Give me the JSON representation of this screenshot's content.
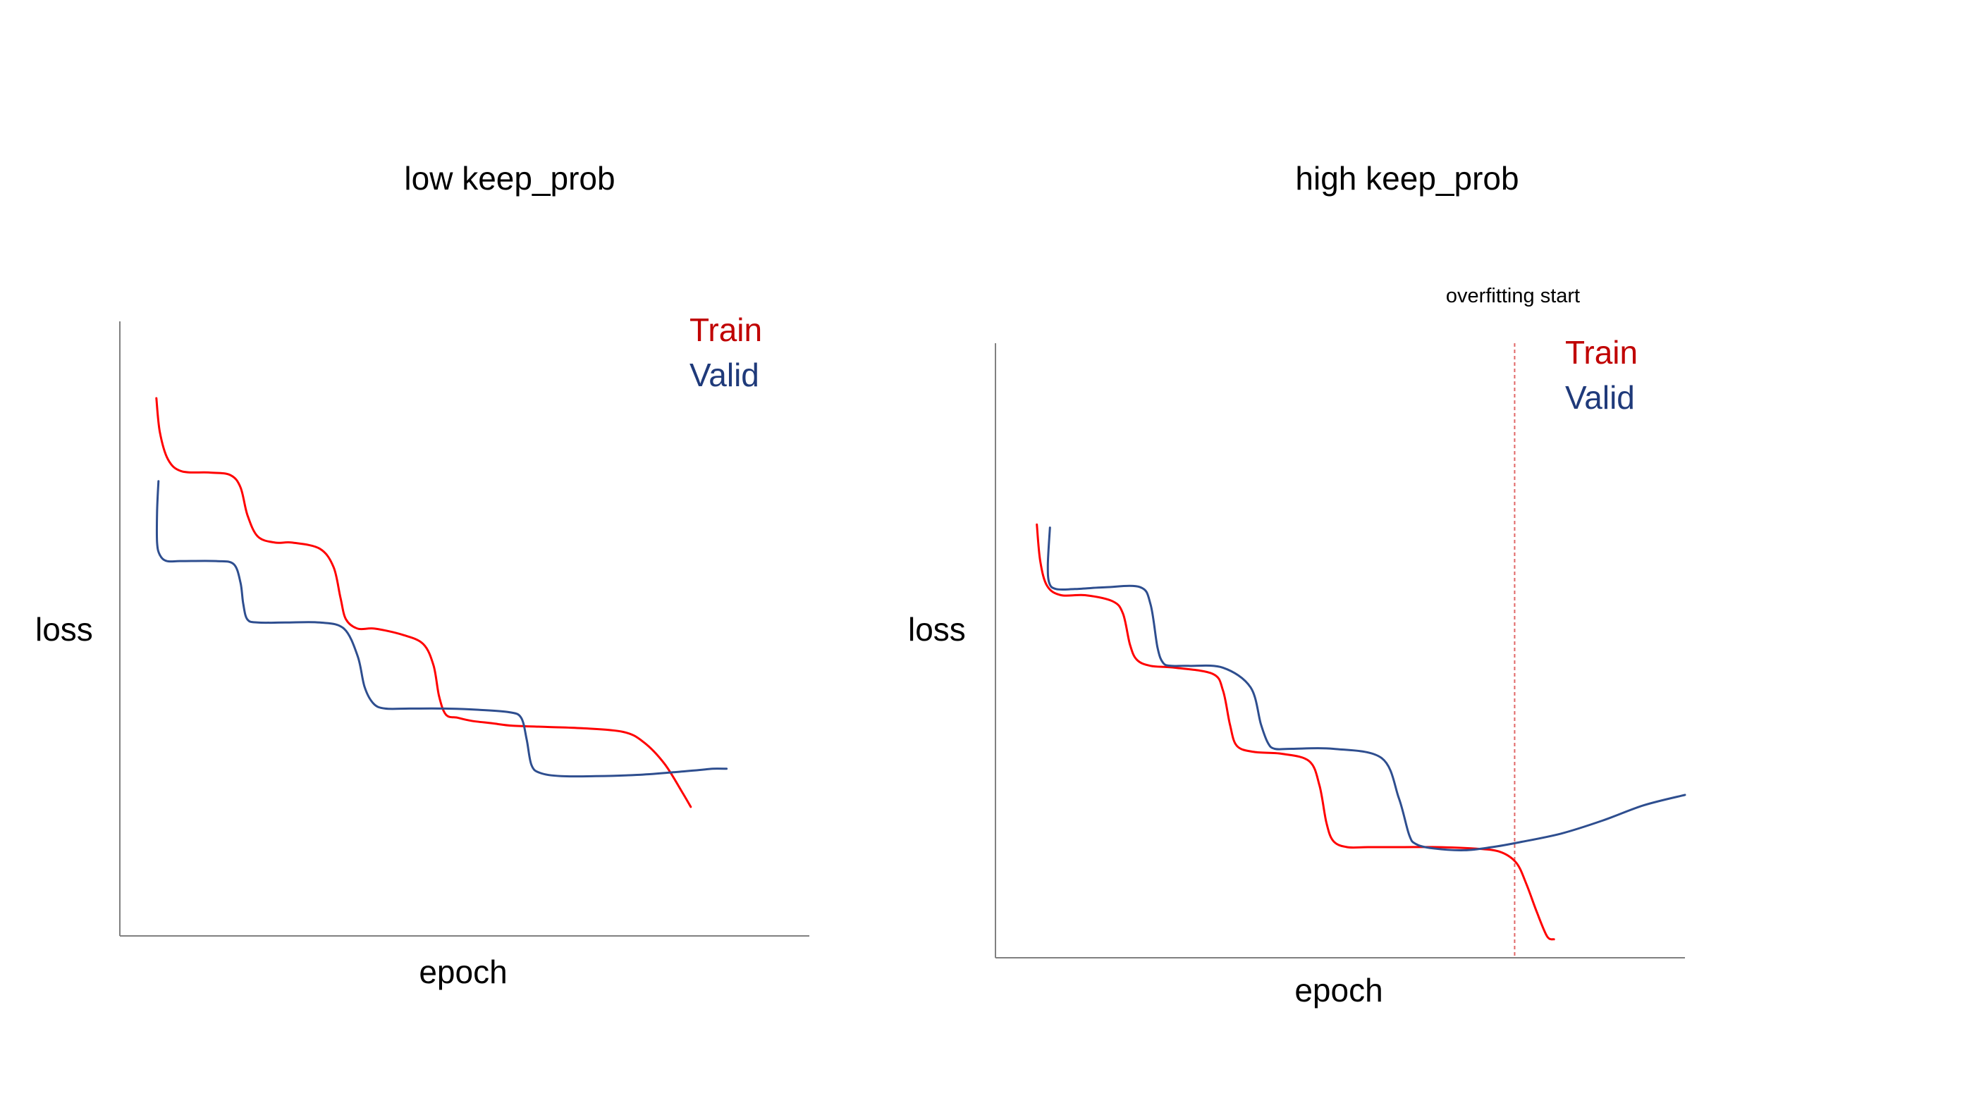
{
  "chart_data": [
    {
      "type": "line",
      "title": "low keep_prob",
      "xlabel": "epoch",
      "ylabel": "loss",
      "xlim": [
        0,
        100
      ],
      "ylim": [
        0,
        100
      ],
      "axis_ticks": false,
      "grid": false,
      "legend_placement": "top-right",
      "series": [
        {
          "name": "Train",
          "color": "#ff0000",
          "x": [
            5.3,
            5.8,
            7.0,
            9.0,
            13.0,
            16.0,
            17.5,
            18.5,
            20.0,
            22.5,
            25.0,
            29.0,
            31.0,
            32.0,
            32.8,
            34.5,
            37.0,
            41.0,
            44.0,
            45.5,
            46.3,
            47.3,
            49.0,
            51.0,
            54.0,
            57.0,
            62.0,
            67.0,
            73.0,
            76.0,
            79.0,
            81.5,
            82.8
          ],
          "y": [
            87.5,
            82.0,
            77.5,
            75.6,
            75.4,
            75.0,
            73.0,
            68.5,
            65.0,
            64.0,
            64.0,
            63.0,
            60.0,
            55.0,
            51.5,
            50.0,
            50.0,
            49.0,
            47.5,
            44.0,
            39.0,
            36.0,
            35.5,
            35.0,
            34.6,
            34.2,
            34.0,
            33.8,
            33.2,
            31.5,
            28.0,
            23.5,
            21.0
          ]
        },
        {
          "name": "Valid",
          "color": "#2e4e8f",
          "x": [
            5.6,
            5.4,
            5.4,
            5.8,
            6.8,
            9.0,
            14.0,
            16.5,
            17.5,
            17.9,
            18.5,
            20.0,
            24.0,
            29.0,
            32.5,
            34.5,
            35.5,
            36.8,
            38.5,
            42.0,
            47.0,
            52.0,
            56.5,
            58.2,
            59.0,
            59.7,
            61.0,
            64.0,
            69.0,
            75.0,
            80.0,
            84.0,
            86.0,
            88.0
          ],
          "y": [
            74.0,
            69.0,
            64.0,
            62.0,
            61.0,
            61.0,
            61.0,
            60.5,
            57.5,
            54.0,
            51.5,
            51.0,
            51.0,
            51.0,
            50.0,
            45.5,
            40.5,
            37.8,
            37.0,
            37.0,
            37.0,
            36.8,
            36.4,
            35.5,
            32.0,
            27.8,
            26.5,
            26.0,
            26.0,
            26.2,
            26.6,
            27.0,
            27.2,
            27.2
          ]
        }
      ]
    },
    {
      "type": "line",
      "title": "high keep_prob",
      "xlabel": "epoch",
      "ylabel": "loss",
      "xlim": [
        0,
        100
      ],
      "ylim": [
        0,
        100
      ],
      "axis_ticks": false,
      "grid": false,
      "legend_placement": "top-right",
      "annotation": {
        "text": "overfitting start",
        "x": 75.3
      },
      "series": [
        {
          "name": "Train",
          "color": "#ff0000",
          "x": [
            6.0,
            6.5,
            7.5,
            9.5,
            13.0,
            17.0,
            18.5,
            19.5,
            20.5,
            22.5,
            26.0,
            31.5,
            33.0,
            34.0,
            35.0,
            37.5,
            41.5,
            45.5,
            47.0,
            48.0,
            49.0,
            51.0,
            54.0,
            59.0,
            64.0,
            69.0,
            73.0,
            75.5,
            77.0,
            78.5,
            80.0,
            81.0
          ],
          "y": [
            70.5,
            64.5,
            60.5,
            59.0,
            59.0,
            58.0,
            56.0,
            51.0,
            48.5,
            47.5,
            47.2,
            46.2,
            43.5,
            38.0,
            34.5,
            33.5,
            33.2,
            32.0,
            28.0,
            22.0,
            19.0,
            18.0,
            18.0,
            18.0,
            18.0,
            17.8,
            17.3,
            15.5,
            12.0,
            7.5,
            3.5,
            3.0
          ]
        },
        {
          "name": "Valid",
          "color": "#2e4e8f",
          "x": [
            7.9,
            7.6,
            7.8,
            8.8,
            11.5,
            16.0,
            21.0,
            22.5,
            23.5,
            24.3,
            25.5,
            28.0,
            33.0,
            37.0,
            38.5,
            39.5,
            40.5,
            43.0,
            49.0,
            56.0,
            58.5,
            60.0,
            61.0,
            63.5,
            68.0,
            72.0,
            76.0,
            82.0,
            88.0,
            94.0,
            100.0
          ],
          "y": [
            70.0,
            64.0,
            61.0,
            60.0,
            60.0,
            60.3,
            60.3,
            57.5,
            50.5,
            48.0,
            47.5,
            47.5,
            47.2,
            44.0,
            38.0,
            35.0,
            34.0,
            34.0,
            34.0,
            32.5,
            26.0,
            20.0,
            18.5,
            17.8,
            17.5,
            18.0,
            18.8,
            20.2,
            22.3,
            24.8,
            26.5
          ]
        }
      ]
    }
  ]
}
